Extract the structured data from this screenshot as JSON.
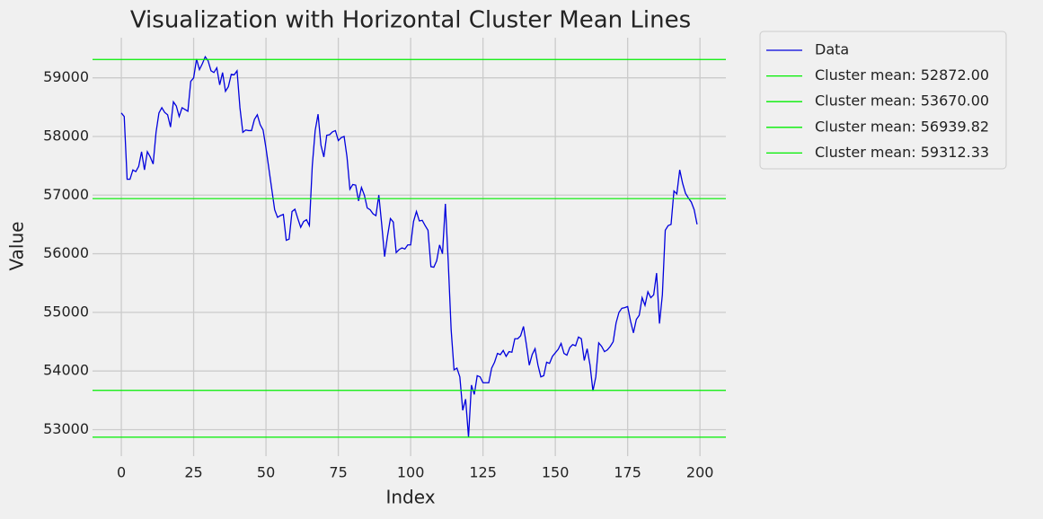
{
  "chart_data": {
    "type": "line",
    "title": "Visualization with Horizontal Cluster Mean Lines",
    "x_label": "Index",
    "y_label": "Value",
    "x": [
      0,
      1,
      2,
      3,
      4,
      5,
      6,
      7,
      8,
      9,
      10,
      11,
      12,
      13,
      14,
      15,
      16,
      17,
      18,
      19,
      20,
      21,
      22,
      23,
      24,
      25,
      26,
      27,
      28,
      29,
      30,
      31,
      32,
      33,
      34,
      35,
      36,
      37,
      38,
      39,
      40,
      41,
      42,
      43,
      44,
      45,
      46,
      47,
      48,
      49,
      50,
      51,
      52,
      53,
      54,
      55,
      56,
      57,
      58,
      59,
      60,
      61,
      62,
      63,
      64,
      65,
      66,
      67,
      68,
      69,
      70,
      71,
      72,
      73,
      74,
      75,
      76,
      77,
      78,
      79,
      80,
      81,
      82,
      83,
      84,
      85,
      86,
      87,
      88,
      89,
      90,
      91,
      92,
      93,
      94,
      95,
      96,
      97,
      98,
      99,
      100,
      101,
      102,
      103,
      104,
      105,
      106,
      107,
      108,
      109,
      110,
      111,
      112,
      113,
      114,
      115,
      116,
      117,
      118,
      119,
      120,
      121,
      122,
      123,
      124,
      125,
      126,
      127,
      128,
      129,
      130,
      131,
      132,
      133,
      134,
      135,
      136,
      137,
      138,
      139,
      140,
      141,
      142,
      143,
      144,
      145,
      146,
      147,
      148,
      149,
      150,
      151,
      152,
      153,
      154,
      155,
      156,
      157,
      158,
      159,
      160,
      161,
      162,
      163,
      164,
      165,
      166,
      167,
      168,
      169,
      170,
      171,
      172,
      173,
      174,
      175,
      176,
      177,
      178,
      179,
      180,
      181,
      182,
      183,
      184,
      185,
      186,
      187,
      188,
      189,
      190,
      191,
      192,
      193,
      194,
      195,
      196,
      197,
      198,
      199
    ],
    "series": [
      {
        "name": "Data",
        "color": "#0000dd",
        "values": [
          58400,
          58340,
          57270,
          57270,
          57430,
          57400,
          57490,
          57740,
          57430,
          57740,
          57650,
          57530,
          58070,
          58400,
          58490,
          58410,
          58370,
          58160,
          58590,
          58520,
          58340,
          58490,
          58460,
          58430,
          58940,
          59000,
          59320,
          59140,
          59240,
          59360,
          59290,
          59120,
          59090,
          59170,
          58880,
          59090,
          58770,
          58850,
          59060,
          59050,
          59120,
          58490,
          58070,
          58110,
          58100,
          58100,
          58290,
          58370,
          58200,
          58110,
          57800,
          57450,
          57100,
          56750,
          56620,
          56650,
          56670,
          56230,
          56250,
          56720,
          56760,
          56600,
          56450,
          56550,
          56580,
          56480,
          57500,
          58100,
          58380,
          57850,
          57650,
          58020,
          58030,
          58080,
          58100,
          57930,
          57980,
          58000,
          57650,
          57100,
          57180,
          57170,
          56900,
          57130,
          57000,
          56780,
          56750,
          56680,
          56650,
          57000,
          56500,
          55950,
          56300,
          56600,
          56540,
          56020,
          56070,
          56100,
          56080,
          56150,
          56150,
          56550,
          56720,
          56560,
          56570,
          56480,
          56400,
          55780,
          55770,
          55880,
          56150,
          56000,
          56850,
          55850,
          54700,
          54020,
          54050,
          53900,
          53330,
          53520,
          52872,
          53760,
          53600,
          53920,
          53900,
          53800,
          53800,
          53800,
          54050,
          54150,
          54300,
          54280,
          54350,
          54250,
          54330,
          54320,
          54550,
          54550,
          54600,
          54760,
          54450,
          54100,
          54280,
          54380,
          54100,
          53900,
          53920,
          54150,
          54130,
          54250,
          54310,
          54370,
          54470,
          54300,
          54270,
          54400,
          54450,
          54430,
          54580,
          54550,
          54180,
          54380,
          54100,
          53660,
          53900,
          54480,
          54420,
          54330,
          54360,
          54420,
          54500,
          54820,
          55000,
          55070,
          55080,
          55100,
          54850,
          54650,
          54880,
          54950,
          55250,
          55120,
          55350,
          55250,
          55300,
          55670,
          54810,
          55300,
          56400,
          56480,
          56500,
          57070,
          57020,
          57430,
          57200,
          57030,
          56950,
          56880,
          56750,
          56500
        ]
      }
    ],
    "hlines": [
      {
        "name": "Cluster mean: 52872.00",
        "value": 52872,
        "color": "#00ee00"
      },
      {
        "name": "Cluster mean: 53670.00",
        "value": 53670,
        "color": "#00ee00"
      },
      {
        "name": "Cluster mean: 56939.82",
        "value": 56939.82,
        "color": "#00ee00"
      },
      {
        "name": "Cluster mean: 59312.33",
        "value": 59312.33,
        "color": "#00ee00"
      }
    ],
    "xlim": [
      -9.95,
      208.95
    ],
    "ylim": [
      52548,
      59684
    ],
    "xticks": [
      0,
      25,
      50,
      75,
      100,
      125,
      150,
      175,
      200
    ],
    "yticks": [
      53000,
      54000,
      55000,
      56000,
      57000,
      58000,
      59000
    ],
    "grid": true,
    "legend_position": "outside-right"
  }
}
